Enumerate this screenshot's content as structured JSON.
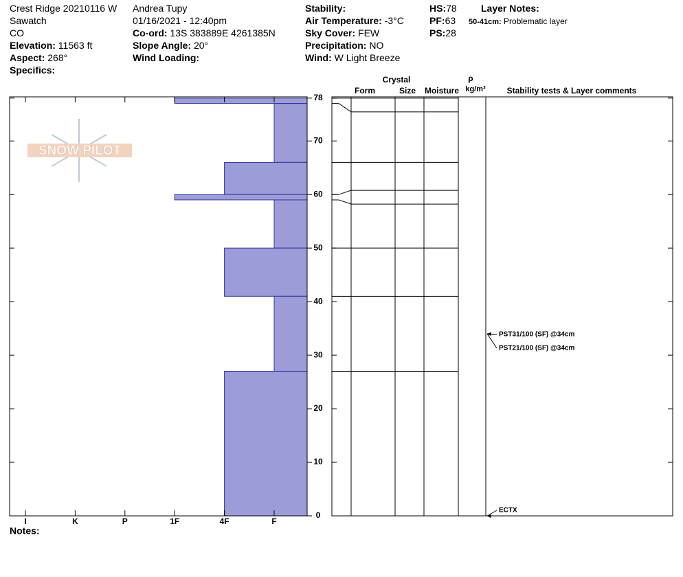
{
  "header": {
    "columns": [
      [
        {
          "value": "Crest Ridge 20210116 W"
        },
        {
          "value": "Sawatch"
        },
        {
          "value": "CO"
        },
        {
          "label": "Elevation:",
          "value": "11563 ft"
        },
        {
          "label": "Aspect:",
          "value": "268°"
        },
        {
          "label": "Specifics:"
        }
      ],
      [
        {
          "value": "Andrea Tupy"
        },
        {
          "value": "01/16/2021 - 12:40pm"
        },
        {
          "label": "Co-ord:",
          "value": "13S 383889E 4261385N"
        },
        {
          "label": "Slope Angle:",
          "value": "20°"
        },
        {
          "label": "Wind Loading:"
        }
      ],
      [
        {
          "label": "Stability:"
        },
        {
          "label": "Air Temperature:",
          "value": "-3°C"
        },
        {
          "label": "Sky Cover:",
          "value": "FEW"
        },
        {
          "label": "Precipitation:",
          "value": "NO"
        },
        {
          "label": "Wind:",
          "value": "W Light Breeze"
        }
      ],
      [
        {
          "label": "HS:",
          "value": "78"
        },
        {
          "label": "PF:",
          "value": "63"
        },
        {
          "label": "PS:",
          "value": "28"
        }
      ]
    ],
    "layer_notes": {
      "title": "Layer Notes:",
      "items": [
        {
          "label": "50-41cm:",
          "value": "Problematic layer"
        }
      ]
    }
  },
  "logo": "SNOW PILOT",
  "chart_data": {
    "type": "hardness",
    "hardness_categories": [
      "I",
      "K",
      "P",
      "1F",
      "4F",
      "F"
    ],
    "layers": [
      {
        "top": 78,
        "bottom": 77,
        "hardness": "1F"
      },
      {
        "top": 77,
        "bottom": 66,
        "hardness": "F"
      },
      {
        "top": 66,
        "bottom": 60,
        "hardness": "4F"
      },
      {
        "top": 60,
        "bottom": 59,
        "hardness": "1F"
      },
      {
        "top": 59,
        "bottom": 50,
        "hardness": "F"
      },
      {
        "top": 50,
        "bottom": 41,
        "hardness": "4F"
      },
      {
        "top": 41,
        "bottom": 27,
        "hardness": "F"
      },
      {
        "top": 27,
        "bottom": 0,
        "hardness": "4F"
      }
    ],
    "color": "#9c9cd8",
    "ylim": [
      0,
      78
    ],
    "yticks": [
      0,
      10,
      20,
      30,
      40,
      50,
      60,
      70,
      78
    ],
    "crystal_label": "Crystal",
    "columns": [
      "Form",
      "Size",
      "Moisture",
      "Stability tests & Layer comments"
    ],
    "density_symbol": "ρ",
    "density_unit": "kg/m³",
    "tests": [
      {
        "label": "PST31/100 (SF) @34cm",
        "depth": 34
      },
      {
        "label": "PST21/100 (SF) @34cm",
        "depth": 34
      },
      {
        "label": "ECTX",
        "depth": 0
      }
    ],
    "notes_label": "Notes:"
  }
}
